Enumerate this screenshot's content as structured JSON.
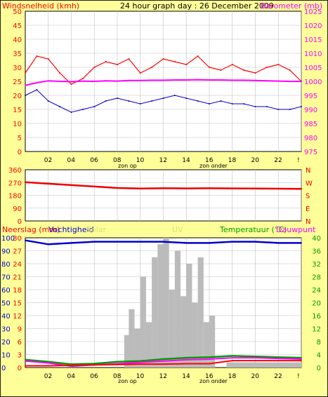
{
  "title": "24 hour graph day : 26 December 2009",
  "colors": {
    "background": "#ffff99",
    "plot_bg": "#ffffff",
    "grid": "#c0c0c0",
    "wind": "#ff0000",
    "gust": "#0000cc",
    "baro": "#ff00ff",
    "winddir": "#ee0000",
    "rain": "#ff0000",
    "humidity": "#0000cc",
    "temperature": "#009900",
    "dewpoint": "#ff00ff",
    "uv": "#bbbbbb",
    "solar": "#bbbbbb",
    "axis_left": "#ff0000",
    "axis_right_baro": "#ff00ff",
    "axis_right_temp": "#009900"
  },
  "labels": {
    "sunrise": "zon op",
    "sunset": "zon onder"
  },
  "x_ticks": [
    "02",
    "04",
    "06",
    "08",
    "10",
    "12",
    "14",
    "16",
    "18",
    "20",
    "22",
    "!"
  ],
  "chart_data": [
    {
      "type": "line",
      "title": "24 hour graph day : 26 December 2009",
      "ylabel": "Windsnelheid (kmh)",
      "ylabel_right": "Barometer (mb)",
      "ylim": [
        0,
        50
      ],
      "ylim_right": [
        975,
        1025
      ],
      "y_ticks": [
        0,
        5,
        10,
        15,
        20,
        25,
        30,
        35,
        40,
        45,
        50
      ],
      "y_ticks_right": [
        975,
        980,
        985,
        990,
        995,
        1000,
        1005,
        1010,
        1015,
        1020,
        1025
      ],
      "x": [
        0,
        1,
        2,
        3,
        4,
        5,
        6,
        7,
        8,
        9,
        10,
        11,
        12,
        13,
        14,
        15,
        16,
        17,
        18,
        19,
        20,
        21,
        22,
        23,
        24
      ],
      "series": [
        {
          "name": "Windsnelheid (kmh)",
          "axis": "left",
          "values": [
            28,
            34,
            33,
            28,
            24,
            26,
            30,
            32,
            31,
            33,
            28,
            30,
            33,
            32,
            31,
            34,
            30,
            29,
            31,
            29,
            28,
            30,
            31,
            29,
            25
          ]
        },
        {
          "name": "Vlaag",
          "axis": "left",
          "values": [
            20,
            22,
            18,
            16,
            14,
            15,
            16,
            18,
            19,
            18,
            17,
            18,
            19,
            20,
            19,
            18,
            17,
            18,
            17,
            17,
            16,
            16,
            15,
            15,
            16
          ]
        },
        {
          "name": "Barometer (mb)",
          "axis": "right",
          "values": [
            998.6,
            999.5,
            1000.2,
            1000.0,
            999.9,
            1000.1,
            1000.0,
            1000.2,
            1000.1,
            1000.3,
            1000.3,
            1000.4,
            1000.4,
            1000.5,
            1000.5,
            1000.6,
            1000.5,
            1000.5,
            1000.4,
            1000.4,
            1000.3,
            1000.2,
            1000.1,
            1000.0,
            1000.0
          ]
        }
      ]
    },
    {
      "type": "line",
      "ylim": [
        0,
        360
      ],
      "y_ticks": [
        0,
        90,
        180,
        270,
        360
      ],
      "y_ticks_right": [
        "N",
        "E",
        "S",
        "W",
        "N"
      ],
      "x": [
        0,
        2,
        4,
        6,
        8,
        10,
        12,
        14,
        16,
        18,
        20,
        22,
        24
      ],
      "series": [
        {
          "values": [
            272,
            262,
            252,
            242,
            232,
            228,
            230,
            229,
            230,
            229,
            228,
            227,
            226
          ]
        }
      ]
    },
    {
      "type": "area",
      "ylabel": "Neerslag (mm)",
      "ylabel_left2": "Vochtigheid",
      "legend": [
        "Solar",
        "UV"
      ],
      "ylabel_right": "Temperatuur (°C)",
      "ylabel_right2": "Dauwpunt",
      "ylim_left": [
        0,
        30
      ],
      "y_ticks_left": [
        0,
        3,
        6,
        9,
        12,
        15,
        18,
        21,
        24,
        27,
        30
      ],
      "ylim_left2": [
        0,
        100
      ],
      "y_ticks_left2": [
        0,
        10,
        20,
        30,
        40,
        50,
        60,
        70,
        80,
        90,
        100
      ],
      "ylim_right": [
        0,
        40
      ],
      "y_ticks_right": [
        0,
        4,
        8,
        12,
        16,
        20,
        24,
        28,
        32,
        36,
        40
      ],
      "x": [
        0,
        2,
        4,
        6,
        8,
        10,
        12,
        14,
        16,
        18,
        20,
        22,
        24
      ],
      "series": [
        {
          "name": "Vochtigheid",
          "axis": "humidity",
          "values": [
            98,
            95,
            96,
            97,
            97,
            97,
            97,
            96,
            96,
            97,
            97,
            96,
            96
          ]
        },
        {
          "name": "Temperatuur (°C)",
          "axis": "right",
          "values": [
            2.4,
            1.8,
            1.0,
            1.2,
            1.8,
            2.0,
            2.6,
            3.0,
            3.2,
            3.6,
            3.4,
            3.2,
            3.0
          ]
        },
        {
          "name": "Dauwpunt",
          "axis": "right",
          "values": [
            2.0,
            1.4,
            0.4,
            0.8,
            1.2,
            1.6,
            2.0,
            2.4,
            2.6,
            3.0,
            3.0,
            2.8,
            2.6
          ]
        },
        {
          "name": "Neerslag (mm)",
          "axis": "left",
          "values": [
            0.4,
            0.4,
            0.5,
            0.6,
            0.7,
            0.8,
            0.8,
            0.9,
            0.9,
            1.6,
            1.6,
            1.6,
            1.6
          ]
        },
        {
          "name": "Solar",
          "axis": "humidity",
          "x": [
            8.6,
            9,
            9.5,
            10,
            10.5,
            11,
            11.5,
            12,
            12.5,
            13,
            13.5,
            14,
            14.5,
            15,
            15.5,
            16
          ],
          "values": [
            25,
            45,
            30,
            70,
            35,
            85,
            95,
            100,
            60,
            90,
            55,
            80,
            50,
            85,
            35,
            40
          ]
        },
        {
          "name": "UV",
          "axis": "humidity",
          "x": [
            17.5,
            24
          ],
          "values": [
            4,
            4
          ]
        }
      ]
    }
  ]
}
